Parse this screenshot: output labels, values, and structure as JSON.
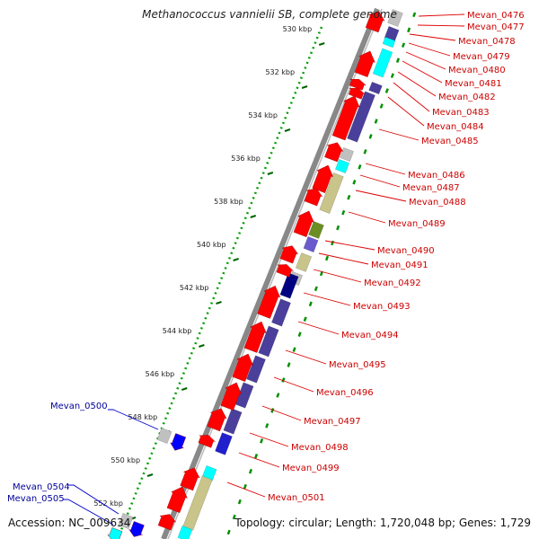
{
  "title": "Methanococcus vannielii SB, complete genome",
  "accession": "Accession: NC_009634",
  "topology": "Topology: circular; Length: 1,720,048 bp; Genes: 1,729",
  "scale_labels": [
    "530 kbp",
    "532 kbp",
    "534 kbp",
    "536 kbp",
    "538 kbp",
    "540 kbp",
    "542 kbp",
    "544 kbp",
    "546 kbp",
    "548 kbp",
    "550 kbp",
    "552 kbp"
  ],
  "colors": {
    "forward_strand_gene": "#ff0000",
    "reverse_strand_gene": "#0000ff",
    "label_forward": "#cc0000",
    "label_reverse": "#000099",
    "backbone": "#888888",
    "scale_dots": "#00a000",
    "cog_cyan": "#00ffff",
    "cog_navy": "#4b3f9c",
    "cog_grey": "#c0c0c0",
    "cog_khaki": "#c8c48a",
    "cog_olive": "#6b8e23",
    "cog_slateblue": "#6a5acd"
  },
  "gene_labels_right": [
    "Mevan_0476",
    "Mevan_0477",
    "Mevan_0478",
    "Mevan_0479",
    "Mevan_0480",
    "Mevan_0481",
    "Mevan_0482",
    "Mevan_0483",
    "Mevan_0484",
    "Mevan_0485",
    "Mevan_0486",
    "Mevan_0487",
    "Mevan_0488",
    "Mevan_0489",
    "Mevan_0490",
    "Mevan_0491",
    "Mevan_0492",
    "Mevan_0493",
    "Mevan_0494",
    "Mevan_0495",
    "Mevan_0496",
    "Mevan_0497",
    "Mevan_0498",
    "Mevan_0499",
    "Mevan_0501"
  ],
  "gene_labels_left": [
    "Mevan_0500",
    "Mevan_0504",
    "Mevan_0505"
  ]
}
